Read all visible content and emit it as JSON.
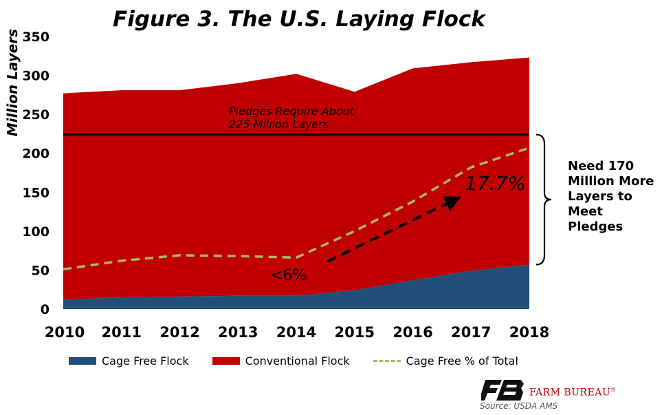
{
  "chart_data": {
    "type": "area",
    "title": "Figure 3. The U.S. Laying Flock",
    "ylabel": "Million Layers",
    "xlabel": "",
    "x": [
      "2010",
      "2011",
      "2012",
      "2013",
      "2014",
      "2015",
      "2016",
      "2017",
      "2018"
    ],
    "ylim": [
      0,
      350
    ],
    "yticks": [
      0,
      50,
      100,
      150,
      200,
      250,
      300,
      350
    ],
    "grid": false,
    "legend_position": "bottom",
    "series": [
      {
        "name": "Cage Free Flock",
        "kind": "stacked-area",
        "color": "#1f4e79",
        "values": [
          12,
          15,
          16,
          17,
          17,
          24,
          37,
          49,
          57
        ]
      },
      {
        "name": "Conventional Flock",
        "kind": "stacked-area",
        "color": "#c00000",
        "values": [
          265,
          266,
          265,
          273,
          285,
          255,
          272,
          268,
          266
        ]
      },
      {
        "name": "Cage Free % of Total",
        "kind": "dashed-line",
        "color": "#a9b965",
        "values": [
          51,
          62,
          69,
          68,
          66,
          100,
          138,
          182,
          207
        ]
      }
    ],
    "reference_line": {
      "value": 224,
      "label_line1": "Pledges Require About",
      "label_line2": "225 Million Layers"
    },
    "annotations": {
      "start_pct": "<6%",
      "end_pct": "17.7%",
      "side_note": [
        "Need 170",
        "Million More",
        "Layers to",
        "Meet",
        "Pledges"
      ]
    }
  },
  "footer": {
    "brand": "FARM BUREAU",
    "brand_mark": "®",
    "source": "Source: USDA AMS"
  },
  "colors": {
    "cage_free": "#1f4e79",
    "conventional": "#c00000",
    "pct_line": "#a9b965",
    "reference": "#000000"
  }
}
